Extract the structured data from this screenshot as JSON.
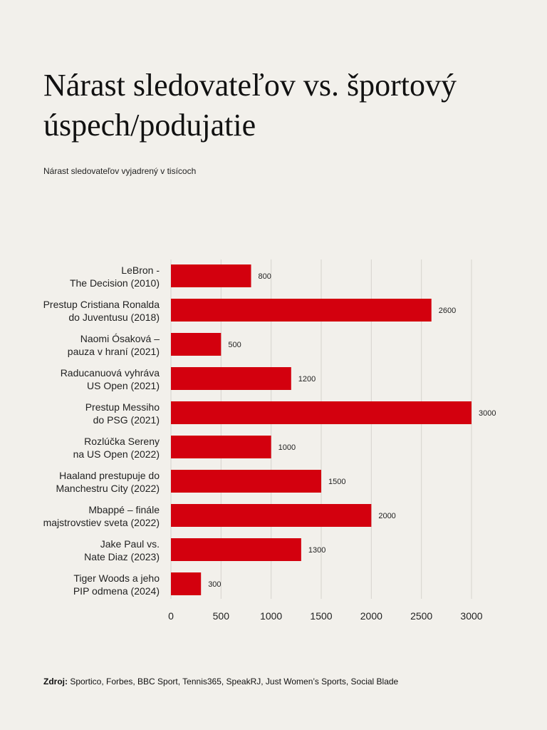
{
  "chart_data": {
    "type": "bar",
    "orientation": "horizontal",
    "title": "Nárast sledovateľov vs. športový úspech/podujatie",
    "subtitle": "Nárast sledovateľov vyjadrený v tisícoch",
    "xlabel": "",
    "ylabel": "",
    "xlim": [
      0,
      3000
    ],
    "xticks": [
      0,
      500,
      1000,
      1500,
      2000,
      2500,
      3000
    ],
    "grid": true,
    "bar_color": "#d3000e",
    "gridline_color": "#d6d3ce",
    "categories": [
      [
        "LeBron -",
        "The Decision (2010)"
      ],
      [
        "Prestup Cristiana Ronalda",
        "do Juventusu (2018)"
      ],
      [
        "Naomi Ósaková –",
        "pauza v hraní (2021)"
      ],
      [
        "Raducanuová vyhráva",
        "US Open (2021)"
      ],
      [
        "Prestup Messiho",
        "do PSG (2021)"
      ],
      [
        "Rozlúčka Sereny",
        "na US Open (2022)"
      ],
      [
        "Haaland prestupuje do",
        "Manchestru City (2022)"
      ],
      [
        "Mbappé – finále",
        "majstrovstiev sveta (2022)"
      ],
      [
        "Jake Paul vs.",
        "Nate Diaz (2023)"
      ],
      [
        "Tiger Woods a jeho",
        "PIP odmena (2024)"
      ]
    ],
    "values": [
      800,
      2600,
      500,
      1200,
      3000,
      1000,
      1500,
      2000,
      1300,
      300
    ]
  },
  "source": {
    "label": "Zdroj:",
    "text": " Sportico, Forbes, BBC Sport, Tennis365, SpeakRJ, Just Women’s Sports, Social Blade"
  }
}
